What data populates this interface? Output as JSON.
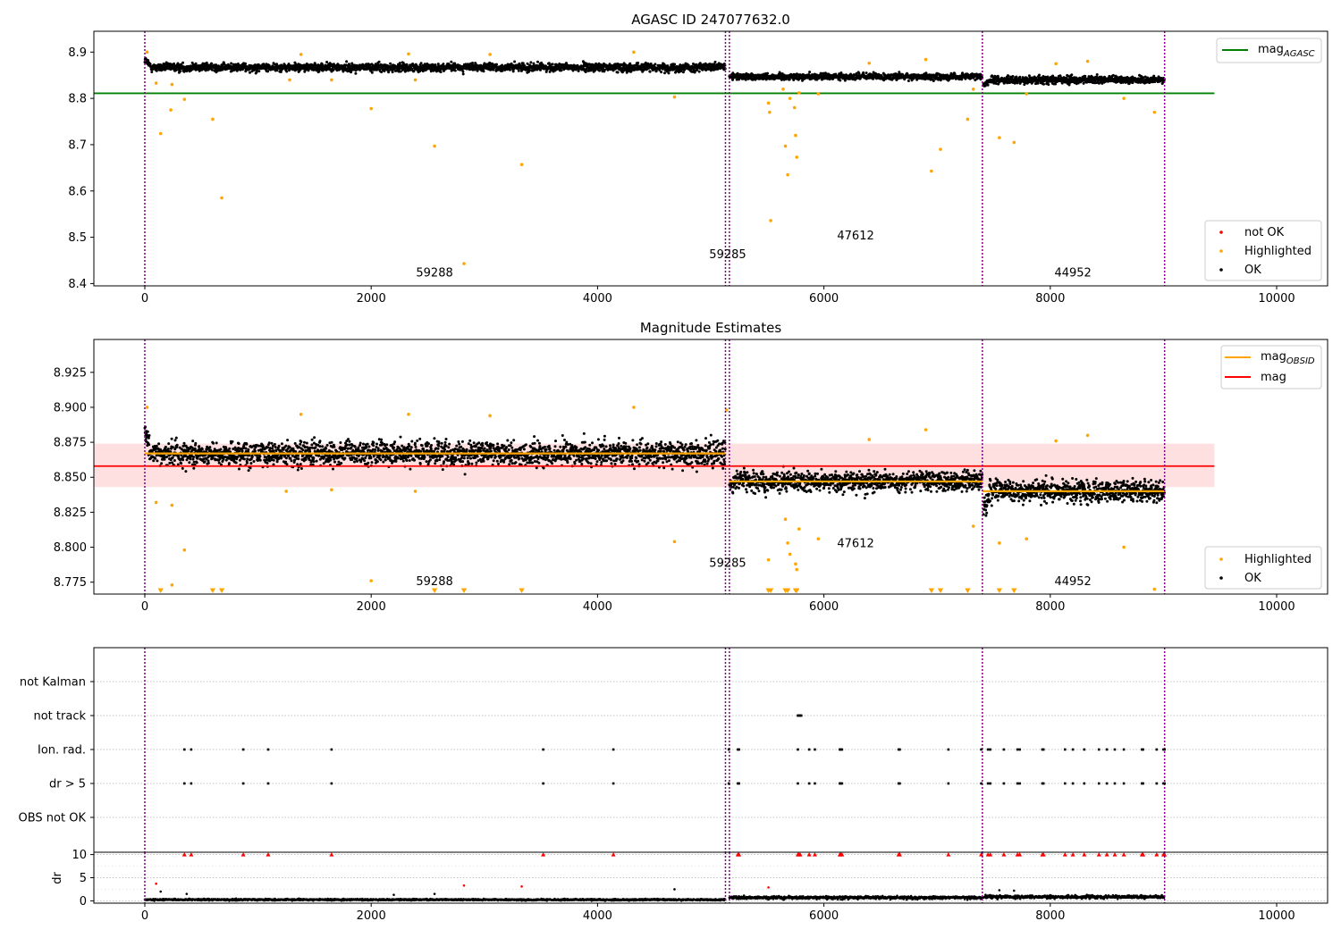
{
  "chart_data": [
    {
      "type": "scatter",
      "title": "AGASC ID 247077632.0",
      "xlim": [
        -450,
        10450
      ],
      "ylim": [
        8.395,
        8.945
      ],
      "xticks": [
        0,
        2000,
        4000,
        6000,
        8000,
        10000
      ],
      "xtick_labels": [
        "0",
        "2000",
        "4000",
        "6000",
        "8000",
        "10000"
      ],
      "yticks": [
        8.4,
        8.5,
        8.6,
        8.7,
        8.8,
        8.9
      ],
      "ytick_labels": [
        "8.4",
        "8.5",
        "8.6",
        "8.7",
        "8.8",
        "8.9"
      ],
      "obsid_boundaries": [
        0,
        5130,
        5165,
        7400,
        9010
      ],
      "obsid_labels": [
        {
          "text": "59288",
          "x": 2560,
          "y": 8.415
        },
        {
          "text": "59285",
          "x": 5150,
          "y": 8.455
        },
        {
          "text": "47612",
          "x": 6280,
          "y": 8.495
        },
        {
          "text": "44952",
          "x": 8200,
          "y": 8.415
        }
      ],
      "agasc_mag": {
        "value": 8.811,
        "x_range": [
          -450,
          9450
        ],
        "color": "#008000"
      },
      "ok_segments": [
        {
          "x_start": 0,
          "x_end": 5130,
          "mean": 8.867,
          "spread": 0.011,
          "start_value": 8.883
        },
        {
          "x_start": 5165,
          "x_end": 7400,
          "mean": 8.847,
          "spread": 0.009,
          "start_value": 8.847
        },
        {
          "x_start": 7410,
          "x_end": 9010,
          "mean": 8.84,
          "spread": 0.01,
          "start_value": 8.828
        }
      ],
      "highlighted_points": [
        {
          "x": 20,
          "y": 8.9
        },
        {
          "x": 100,
          "y": 8.833
        },
        {
          "x": 140,
          "y": 8.724
        },
        {
          "x": 230,
          "y": 8.775
        },
        {
          "x": 240,
          "y": 8.83
        },
        {
          "x": 350,
          "y": 8.798
        },
        {
          "x": 600,
          "y": 8.755
        },
        {
          "x": 680,
          "y": 8.585
        },
        {
          "x": 1280,
          "y": 8.84
        },
        {
          "x": 1380,
          "y": 8.895
        },
        {
          "x": 1650,
          "y": 8.84
        },
        {
          "x": 2000,
          "y": 8.778
        },
        {
          "x": 2330,
          "y": 8.896
        },
        {
          "x": 2390,
          "y": 8.84
        },
        {
          "x": 2560,
          "y": 8.697
        },
        {
          "x": 2820,
          "y": 8.443
        },
        {
          "x": 3050,
          "y": 8.895
        },
        {
          "x": 3330,
          "y": 8.657
        },
        {
          "x": 4320,
          "y": 8.9
        },
        {
          "x": 4680,
          "y": 8.803
        },
        {
          "x": 5510,
          "y": 8.79
        },
        {
          "x": 5520,
          "y": 8.77
        },
        {
          "x": 5530,
          "y": 8.536
        },
        {
          "x": 5640,
          "y": 8.82
        },
        {
          "x": 5660,
          "y": 8.697
        },
        {
          "x": 5680,
          "y": 8.635
        },
        {
          "x": 5700,
          "y": 8.8
        },
        {
          "x": 5740,
          "y": 8.78
        },
        {
          "x": 5750,
          "y": 8.72
        },
        {
          "x": 5760,
          "y": 8.673
        },
        {
          "x": 5780,
          "y": 8.812
        },
        {
          "x": 5950,
          "y": 8.81
        },
        {
          "x": 6400,
          "y": 8.876
        },
        {
          "x": 6900,
          "y": 8.884
        },
        {
          "x": 6950,
          "y": 8.643
        },
        {
          "x": 7030,
          "y": 8.69
        },
        {
          "x": 7270,
          "y": 8.755
        },
        {
          "x": 7320,
          "y": 8.82
        },
        {
          "x": 7550,
          "y": 8.715
        },
        {
          "x": 7680,
          "y": 8.705
        },
        {
          "x": 7790,
          "y": 8.81
        },
        {
          "x": 8050,
          "y": 8.875
        },
        {
          "x": 8330,
          "y": 8.88
        },
        {
          "x": 8650,
          "y": 8.8
        },
        {
          "x": 8920,
          "y": 8.77
        }
      ],
      "legend_line": {
        "label_main": "mag",
        "label_sub": "AGASC"
      },
      "legend_markers": [
        {
          "label": "not OK",
          "color": "#ff0000"
        },
        {
          "label": "Highlighted",
          "color": "#ffa500"
        },
        {
          "label": "OK",
          "color": "#000000"
        }
      ]
    },
    {
      "type": "scatter",
      "title": "Magnitude Estimates",
      "xlim": [
        -450,
        10450
      ],
      "ylim": [
        8.7665,
        8.9485
      ],
      "xticks": [
        0,
        2000,
        4000,
        6000,
        8000,
        10000
      ],
      "xtick_labels": [
        "0",
        "2000",
        "4000",
        "6000",
        "8000",
        "10000"
      ],
      "yticks": [
        8.775,
        8.8,
        8.825,
        8.85,
        8.875,
        8.9,
        8.925
      ],
      "ytick_labels": [
        "8.775",
        "8.800",
        "8.825",
        "8.850",
        "8.875",
        "8.900",
        "8.925"
      ],
      "obsid_boundaries": [
        0,
        5130,
        5165,
        7400,
        9010
      ],
      "obsid_labels": [
        {
          "text": "59288",
          "x": 2560,
          "y": 8.773
        },
        {
          "text": "59285",
          "x": 5150,
          "y": 8.786
        },
        {
          "text": "47612",
          "x": 6280,
          "y": 8.8
        },
        {
          "text": "44952",
          "x": 8200,
          "y": 8.773
        }
      ],
      "mag_line": {
        "value": 8.858,
        "x_range": [
          -450,
          9450
        ],
        "color": "#ff0000"
      },
      "mag_band": {
        "low": 8.843,
        "high": 8.874,
        "color": "#ffe0e0"
      },
      "obsid_mags": [
        {
          "x_start": 0,
          "x_end": 5130,
          "value": 8.867
        },
        {
          "x_start": 5165,
          "x_end": 7400,
          "value": 8.847
        },
        {
          "x_start": 7400,
          "x_end": 9010,
          "value": 8.84
        }
      ],
      "ok_segments": [
        {
          "x_start": 0,
          "x_end": 5130,
          "mean": 8.867,
          "spread": 0.011,
          "start_value": 8.883
        },
        {
          "x_start": 5165,
          "x_end": 7400,
          "mean": 8.847,
          "spread": 0.009,
          "start_value": 8.847
        },
        {
          "x_start": 7410,
          "x_end": 9010,
          "mean": 8.84,
          "spread": 0.01,
          "start_value": 8.828
        }
      ],
      "highlighted_points": [
        {
          "x": 20,
          "y": 8.9
        },
        {
          "x": 100,
          "y": 8.832
        },
        {
          "x": 240,
          "y": 8.83
        },
        {
          "x": 240,
          "y": 8.773
        },
        {
          "x": 350,
          "y": 8.798
        },
        {
          "x": 1250,
          "y": 8.84
        },
        {
          "x": 1380,
          "y": 8.895
        },
        {
          "x": 1650,
          "y": 8.841
        },
        {
          "x": 2000,
          "y": 8.776
        },
        {
          "x": 2330,
          "y": 8.895
        },
        {
          "x": 2390,
          "y": 8.84
        },
        {
          "x": 3050,
          "y": 8.894
        },
        {
          "x": 4320,
          "y": 8.9
        },
        {
          "x": 4680,
          "y": 8.804
        },
        {
          "x": 5140,
          "y": 8.898
        },
        {
          "x": 5510,
          "y": 8.791
        },
        {
          "x": 5660,
          "y": 8.82
        },
        {
          "x": 5680,
          "y": 8.803
        },
        {
          "x": 5700,
          "y": 8.795
        },
        {
          "x": 5750,
          "y": 8.788
        },
        {
          "x": 5760,
          "y": 8.784
        },
        {
          "x": 5780,
          "y": 8.813
        },
        {
          "x": 5950,
          "y": 8.806
        },
        {
          "x": 6400,
          "y": 8.877
        },
        {
          "x": 6900,
          "y": 8.884
        },
        {
          "x": 7320,
          "y": 8.815
        },
        {
          "x": 7550,
          "y": 8.803
        },
        {
          "x": 7790,
          "y": 8.806
        },
        {
          "x": 8050,
          "y": 8.876
        },
        {
          "x": 8330,
          "y": 8.88
        },
        {
          "x": 8650,
          "y": 8.8
        },
        {
          "x": 8920,
          "y": 8.77
        }
      ],
      "below_limit_x": [
        140,
        600,
        680,
        2560,
        2820,
        3330,
        5510,
        5530,
        5660,
        5680,
        5750,
        5760,
        6950,
        7030,
        7270,
        7550,
        7680
      ],
      "legend_lines": [
        {
          "label_main": "mag",
          "label_sub": "OBSID",
          "color": "#ffa500"
        },
        {
          "label_main": "mag",
          "label_sub": "",
          "color": "#ff0000"
        }
      ],
      "legend_markers": [
        {
          "label": "Highlighted",
          "color": "#ffa500"
        },
        {
          "label": "OK",
          "color": "#000000"
        }
      ]
    },
    {
      "type": "scatter",
      "title": "",
      "xlim": [
        -450,
        10450
      ],
      "flag_rows": [
        "not Kalman",
        "not track",
        "Ion. rad.",
        "dr > 5",
        "OBS not OK"
      ],
      "flag_points": {
        "not track": [
          5770,
          5780,
          5790,
          5800
        ],
        "Ion. rad.": [
          350,
          410,
          870,
          1090,
          1650,
          3520,
          4140,
          5160,
          5240,
          5250,
          5770,
          5870,
          5920,
          6140,
          6150,
          6160,
          6660,
          6670,
          7100,
          7390,
          7450,
          7470,
          7590,
          7710,
          7730,
          7930,
          7940,
          8130,
          8200,
          8300,
          8430,
          8500,
          8570,
          8650,
          8810,
          8820,
          8940,
          9000,
          9010
        ],
        "dr > 5": [
          350,
          410,
          870,
          1090,
          1650,
          3520,
          4140,
          5160,
          5240,
          5250,
          5770,
          5870,
          5920,
          6140,
          6150,
          6160,
          6660,
          6670,
          7100,
          7390,
          7450,
          7470,
          7590,
          7710,
          7730,
          7930,
          7940,
          8130,
          8200,
          8300,
          8430,
          8500,
          8570,
          8650,
          8810,
          8820,
          8940,
          9000,
          9010
        ]
      },
      "obsid_boundaries": [
        0,
        5130,
        5165,
        7400,
        9010
      ]
    },
    {
      "type": "scatter",
      "title": "",
      "ylabel": "dr",
      "xlim": [
        -450,
        10450
      ],
      "ylim": [
        -0.5,
        10.5
      ],
      "xticks": [
        0,
        2000,
        4000,
        6000,
        8000,
        10000
      ],
      "xtick_labels": [
        "0",
        "2000",
        "4000",
        "6000",
        "8000",
        "10000"
      ],
      "yticks": [
        0,
        5,
        10
      ],
      "ytick_labels": [
        "0",
        "5",
        "10"
      ],
      "obsid_boundaries": [
        0,
        5130,
        5165,
        7400,
        9010
      ],
      "dr_segments": [
        {
          "x_start": 0,
          "x_end": 5130,
          "mean": 0.25,
          "spread": 0.2
        },
        {
          "x_start": 5165,
          "x_end": 7400,
          "mean": 0.7,
          "spread": 0.35
        },
        {
          "x_start": 7410,
          "x_end": 9010,
          "mean": 0.85,
          "spread": 0.4
        }
      ],
      "dr_outliers": [
        {
          "x": 100,
          "y": 3.7
        },
        {
          "x": 140,
          "y": 2.0
        },
        {
          "x": 370,
          "y": 1.5
        },
        {
          "x": 2200,
          "y": 1.3
        },
        {
          "x": 2560,
          "y": 1.5
        },
        {
          "x": 2820,
          "y": 3.3
        },
        {
          "x": 3330,
          "y": 3.1
        },
        {
          "x": 4680,
          "y": 2.5
        },
        {
          "x": 5510,
          "y": 2.9
        },
        {
          "x": 7550,
          "y": 2.3
        },
        {
          "x": 7680,
          "y": 2.2
        }
      ],
      "clipped_at_10_x": [
        350,
        410,
        870,
        1090,
        1650,
        3520,
        4140,
        5240,
        5250,
        5770,
        5780,
        5790,
        5870,
        5920,
        6140,
        6150,
        6160,
        6660,
        6670,
        7100,
        7390,
        7450,
        7470,
        7590,
        7710,
        7730,
        7930,
        7940,
        8130,
        8200,
        8300,
        8430,
        8500,
        8570,
        8650,
        8810,
        8820,
        8940,
        9000,
        9010
      ],
      "colors": {
        "ok": "#000000",
        "not_ok": "#ff0000"
      }
    }
  ]
}
